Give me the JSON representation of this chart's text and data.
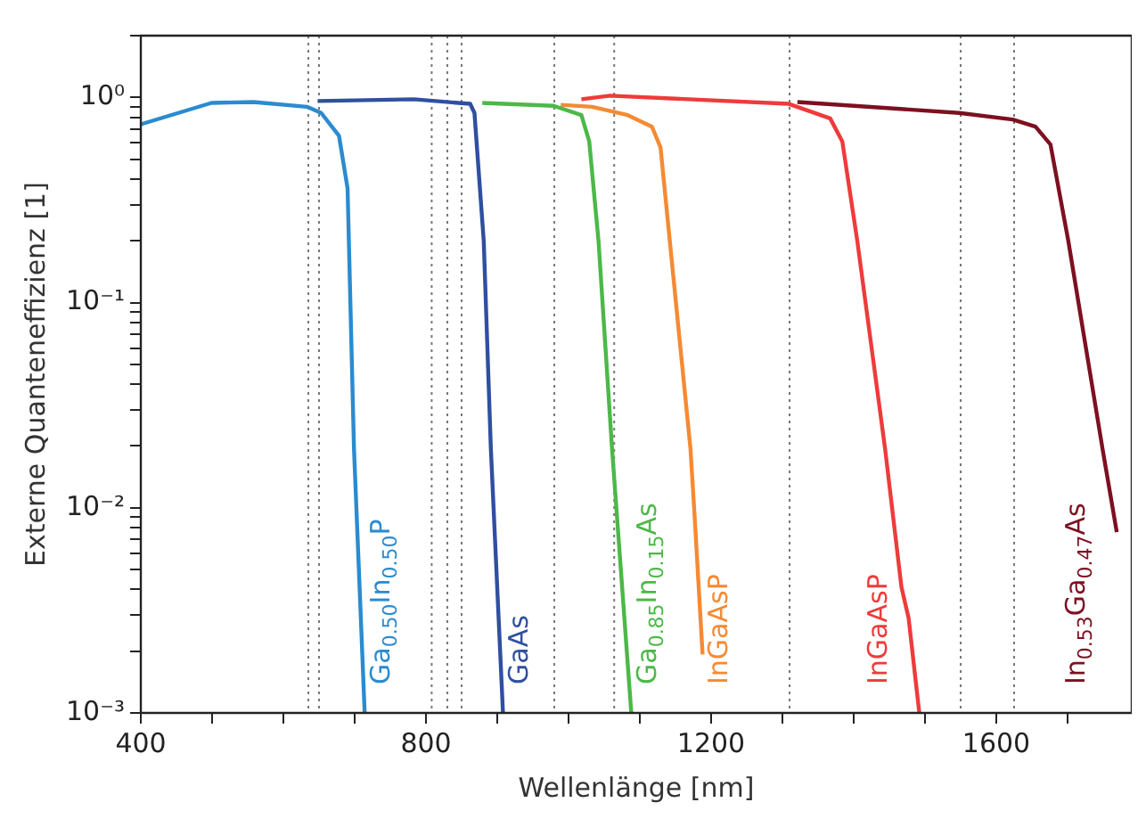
{
  "chart_data": {
    "type": "line",
    "xlabel": "Wellenlänge [nm]",
    "ylabel": "Externe Quanteneffizienz [1]",
    "log": "y",
    "xlim": [
      400,
      1790
    ],
    "ylim": [
      0.001,
      2
    ],
    "xticks": [
      400,
      {
        "value": 500,
        "label": null
      },
      {
        "value": 600,
        "label": null
      },
      {
        "value": 700,
        "label": null
      },
      800,
      {
        "value": 900,
        "label": null
      },
      {
        "value": 1000,
        "label": null
      },
      {
        "value": 1100,
        "label": null
      },
      1200,
      {
        "value": 1300,
        "label": null
      },
      {
        "value": 1400,
        "label": null
      },
      {
        "value": 1500,
        "label": null
      },
      1600,
      {
        "value": 1700,
        "label": null
      }
    ],
    "yticks": [
      {
        "value": 0.001,
        "label": "10⁻³"
      },
      {
        "value": 0.002,
        "label": null
      },
      {
        "value": 0.003,
        "label": null
      },
      {
        "value": 0.004,
        "label": null
      },
      {
        "value": 0.005,
        "label": null
      },
      {
        "value": 0.006,
        "label": null
      },
      {
        "value": 0.007,
        "label": null
      },
      {
        "value": 0.008,
        "label": null
      },
      {
        "value": 0.009,
        "label": null
      },
      {
        "value": 0.01,
        "label": "10⁻²"
      },
      {
        "value": 0.02,
        "label": null
      },
      {
        "value": 0.03,
        "label": null
      },
      {
        "value": 0.04,
        "label": null
      },
      {
        "value": 0.05,
        "label": null
      },
      {
        "value": 0.06,
        "label": null
      },
      {
        "value": 0.07,
        "label": null
      },
      {
        "value": 0.08,
        "label": null
      },
      {
        "value": 0.09,
        "label": null
      },
      {
        "value": 0.1,
        "label": "10⁻¹"
      },
      {
        "value": 0.2,
        "label": null
      },
      {
        "value": 0.3,
        "label": null
      },
      {
        "value": 0.4,
        "label": null
      },
      {
        "value": 0.5,
        "label": null
      },
      {
        "value": 0.6,
        "label": null
      },
      {
        "value": 0.7,
        "label": null
      },
      {
        "value": 0.8,
        "label": null
      },
      {
        "value": 0.9,
        "label": null
      },
      {
        "value": 1,
        "label": "10⁰"
      },
      {
        "value": 2,
        "label": null
      }
    ],
    "grid": false,
    "legend": false,
    "marker": "none",
    "line_style": "solid",
    "series": [
      {
        "name": "Ga$_{0.50}$In$_{0.50}$P",
        "color": "#2a8bd0",
        "x": [
          400,
          499,
          558,
          633,
          653,
          678,
          690,
          699,
          714
        ],
        "values": [
          0.74,
          0.94,
          0.95,
          0.9,
          0.84,
          0.65,
          0.36,
          0.0194,
          0.001
        ]
      },
      {
        "name": "GaAs",
        "color": "#2f4fa0",
        "x": [
          648,
          783,
          862,
          868,
          881,
          891,
          908
        ],
        "values": [
          0.96,
          0.98,
          0.93,
          0.84,
          0.2,
          0.0194,
          0.001
        ]
      },
      {
        "name": "Ga$_{0.85}$In$_{0.15}$As",
        "color": "#4cb848",
        "x": [
          879,
          979,
          1018,
          1029,
          1042,
          1061,
          1088
        ],
        "values": [
          0.94,
          0.91,
          0.82,
          0.61,
          0.2,
          0.0194,
          0.001
        ]
      },
      {
        "name": "InGaAsP",
        "color": "#f58a33",
        "x": [
          989,
          1033,
          1083,
          1117,
          1129,
          1142,
          1171,
          1177,
          1188
        ],
        "values": [
          0.92,
          0.9,
          0.82,
          0.72,
          0.57,
          0.2,
          0.0194,
          0.0089,
          0.00193
        ]
      },
      {
        "name": "InGaAsP",
        "color": "#ee3b3b",
        "x": [
          1018,
          1058,
          1309,
          1367,
          1384,
          1405,
          1444,
          1467,
          1477,
          1492
        ],
        "values": [
          0.98,
          1.02,
          0.93,
          0.79,
          0.61,
          0.2,
          0.0194,
          0.0041,
          0.0029,
          0.001
        ]
      },
      {
        "name": "In$_{0.53}$Ga$_{0.47}$As",
        "color": "#7d1020",
        "x": [
          1321,
          1548,
          1623,
          1655,
          1676,
          1701,
          1749,
          1769
        ],
        "values": [
          0.95,
          0.84,
          0.78,
          0.72,
          0.59,
          0.2,
          0.0194,
          0.0076
        ]
      }
    ],
    "ref_lines": [
      {
        "axis": "x",
        "value": 635,
        "color": "#777777",
        "line_style": "dotted"
      },
      {
        "axis": "x",
        "value": 650,
        "color": "#777777",
        "line_style": "dotted"
      },
      {
        "axis": "x",
        "value": 808,
        "color": "#777777",
        "line_style": "dotted"
      },
      {
        "axis": "x",
        "value": 830,
        "color": "#777777",
        "line_style": "dotted"
      },
      {
        "axis": "x",
        "value": 850,
        "color": "#777777",
        "line_style": "dotted"
      },
      {
        "axis": "x",
        "value": 980,
        "color": "#777777",
        "line_style": "dotted"
      },
      {
        "axis": "x",
        "value": 1064,
        "color": "#777777",
        "line_style": "dotted"
      },
      {
        "axis": "x",
        "value": 1310,
        "color": "#777777",
        "line_style": "dotted"
      },
      {
        "axis": "x",
        "value": 1550,
        "color": "#777777",
        "line_style": "dotted"
      },
      {
        "axis": "x",
        "value": 1625,
        "color": "#777777",
        "line_style": "dotted"
      }
    ]
  }
}
